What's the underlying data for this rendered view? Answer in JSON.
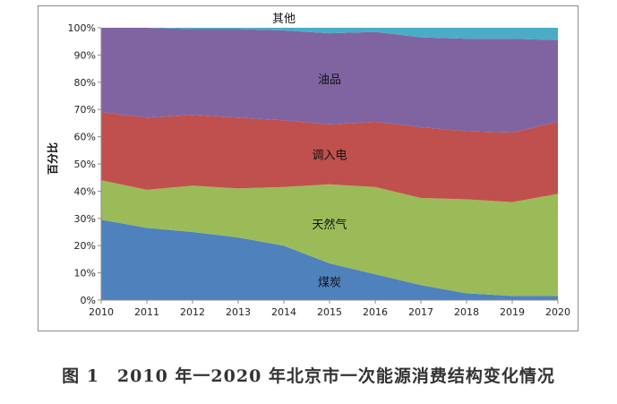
{
  "caption": "图 1　2010 年一2020 年北京市一次能源消费结构变化情况",
  "chart_data": {
    "type": "area",
    "stacked": true,
    "ylabel": "百分比",
    "xlabel": "",
    "ylim": [
      0,
      100
    ],
    "yticks": [
      "0%",
      "10%",
      "20%",
      "30%",
      "40%",
      "50%",
      "60%",
      "70%",
      "80%",
      "90%",
      "100%"
    ],
    "x": [
      "2010",
      "2011",
      "2012",
      "2013",
      "2014",
      "2015",
      "2016",
      "2017",
      "2018",
      "2019",
      "2020"
    ],
    "series": [
      {
        "name": "煤炭",
        "color": "#4f81bd",
        "values": [
          29.5,
          26.5,
          25,
          23,
          20,
          13.5,
          9.5,
          5.5,
          2.5,
          1.5,
          1.5
        ]
      },
      {
        "name": "天然气",
        "color": "#9bbb59",
        "values": [
          14.5,
          14,
          17,
          18,
          21.5,
          29,
          32,
          32,
          34.5,
          34.5,
          37.5
        ]
      },
      {
        "name": "调入电",
        "color": "#c0504d",
        "values": [
          25,
          26.5,
          26,
          26,
          24.5,
          22,
          24,
          26,
          25,
          25.5,
          26.5
        ]
      },
      {
        "name": "油品",
        "color": "#8064a2",
        "values": [
          31,
          33,
          31.5,
          32.5,
          33,
          33.5,
          33,
          33,
          34,
          34.5,
          30
        ]
      },
      {
        "name": "其他",
        "color": "#4bacc6",
        "values": [
          0,
          0,
          0.5,
          0.5,
          1,
          2,
          1.5,
          3.5,
          4,
          4,
          4.5
        ]
      }
    ],
    "grid": false,
    "legend": "inline labels"
  }
}
